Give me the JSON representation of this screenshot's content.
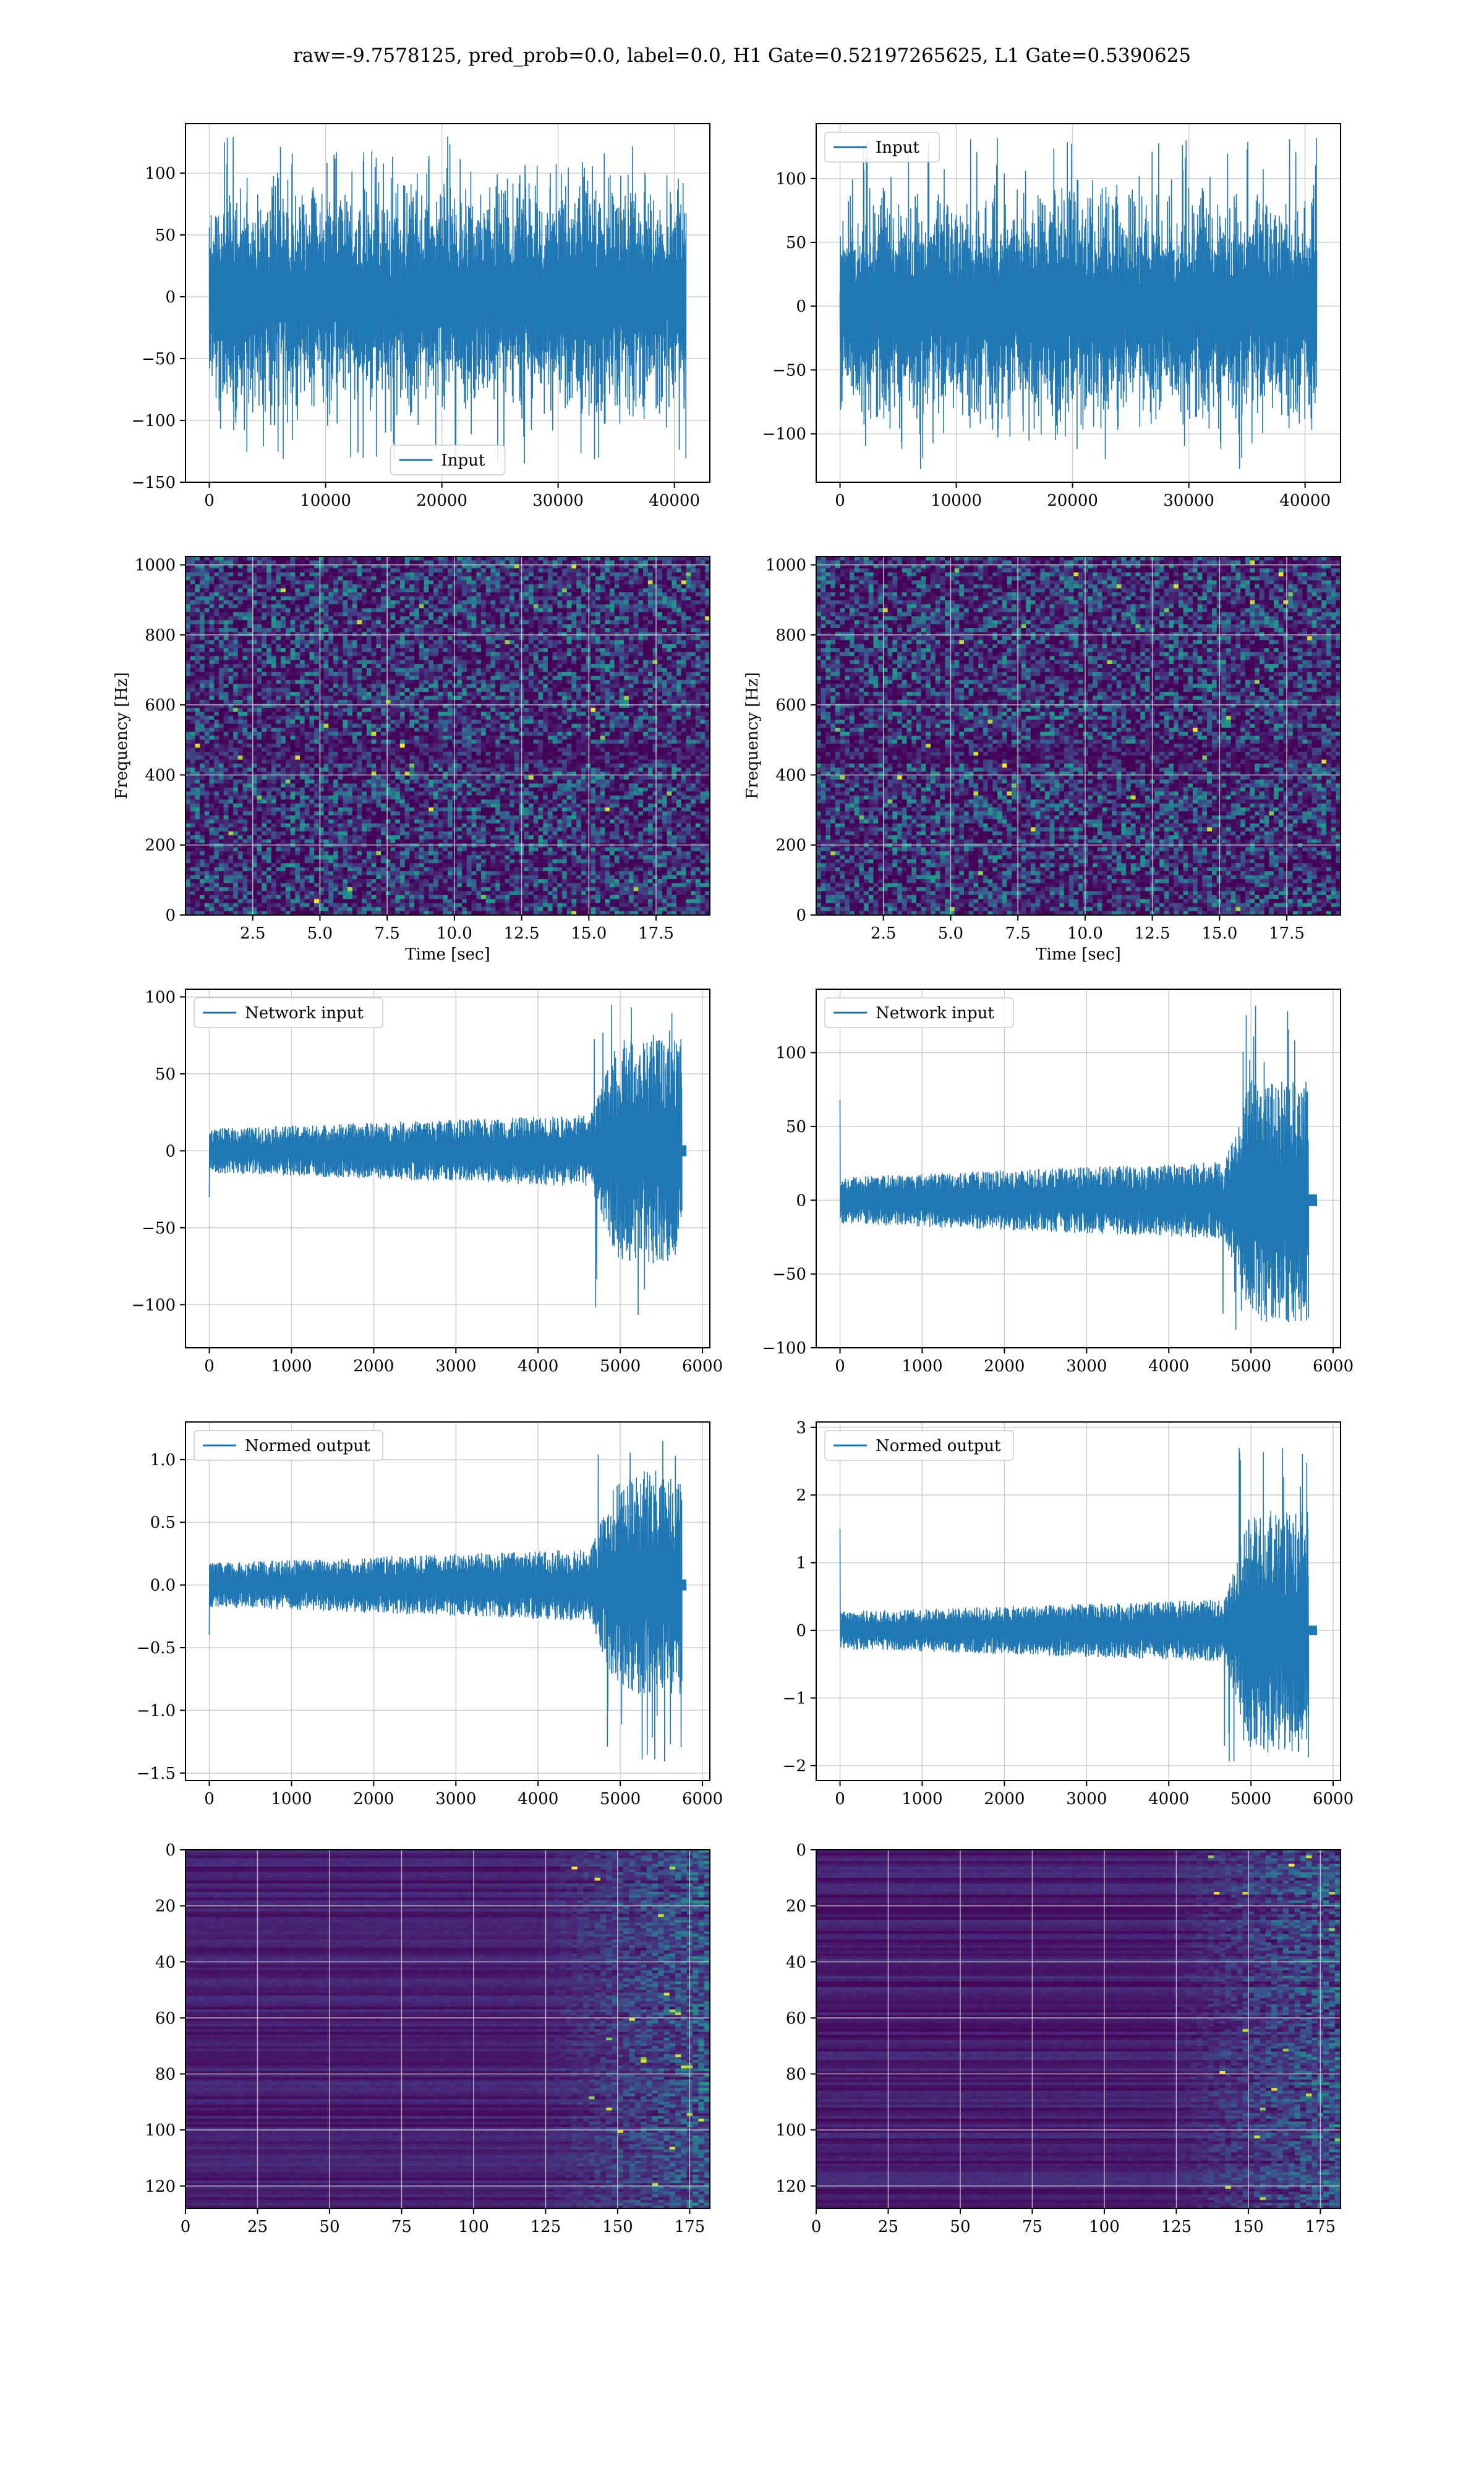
{
  "title": "raw=-9.7578125, pred_prob=0.0, label=0.0, H1 Gate=0.52197265625, L1 Gate=0.5390625",
  "colors": {
    "line": "#1f77b4",
    "grid": "#b0b0b0",
    "viridis_low": "#440154",
    "viridis_high": "#fde725"
  },
  "chart_data": [
    {
      "id": "input-h1",
      "type": "line",
      "row": 0,
      "col": 0,
      "legend": "Input",
      "legend_loc": "lower center",
      "x": [
        0,
        41000
      ],
      "xlim": [
        -2050,
        43050
      ],
      "ylim": [
        -150,
        140
      ],
      "xticks": [
        0,
        10000,
        20000,
        30000,
        40000
      ],
      "xticklabels": [
        "0",
        "10000",
        "20000",
        "30000",
        "40000"
      ],
      "yticks": [
        -150,
        -100,
        -50,
        0,
        50,
        100
      ],
      "yticklabels": [
        "−150",
        "−100",
        "−50",
        "0",
        "50",
        "100"
      ],
      "envelope": {
        "typical_abs": 85,
        "spike_max": 130,
        "spike_min": -135
      },
      "xlabel": "",
      "ylabel": ""
    },
    {
      "id": "input-l1",
      "type": "line",
      "row": 0,
      "col": 1,
      "legend": "Input",
      "legend_loc": "upper left",
      "x": [
        0,
        41000
      ],
      "xlim": [
        -2050,
        43050
      ],
      "ylim": [
        -138,
        143
      ],
      "xticks": [
        0,
        10000,
        20000,
        30000,
        40000
      ],
      "xticklabels": [
        "0",
        "10000",
        "20000",
        "30000",
        "40000"
      ],
      "yticks": [
        -100,
        -50,
        0,
        50,
        100
      ],
      "yticklabels": [
        "−100",
        "−50",
        "0",
        "50",
        "100"
      ],
      "envelope": {
        "typical_abs": 82,
        "spike_max": 132,
        "spike_min": -128
      },
      "xlabel": "",
      "ylabel": ""
    },
    {
      "id": "spec-h1",
      "type": "heatmap",
      "row": 1,
      "col": 0,
      "xlim": [
        0,
        19.5
      ],
      "ylim": [
        0,
        1024
      ],
      "xticks": [
        2.5,
        5.0,
        7.5,
        10.0,
        12.5,
        15.0,
        17.5
      ],
      "xticklabels": [
        "2.5",
        "5.0",
        "7.5",
        "10.0",
        "12.5",
        "15.0",
        "17.5"
      ],
      "yticks": [
        0,
        200,
        400,
        600,
        800,
        1000
      ],
      "yticklabels": [
        "0",
        "200",
        "400",
        "600",
        "800",
        "1000"
      ],
      "xlabel": "Time [sec]",
      "ylabel": "Frequency [Hz]",
      "colormap": "viridis"
    },
    {
      "id": "spec-l1",
      "type": "heatmap",
      "row": 1,
      "col": 1,
      "xlim": [
        0,
        19.5
      ],
      "ylim": [
        0,
        1024
      ],
      "xticks": [
        2.5,
        5.0,
        7.5,
        10.0,
        12.5,
        15.0,
        17.5
      ],
      "xticklabels": [
        "2.5",
        "5.0",
        "7.5",
        "10.0",
        "12.5",
        "15.0",
        "17.5"
      ],
      "yticks": [
        0,
        200,
        400,
        600,
        800,
        1000
      ],
      "yticklabels": [
        "0",
        "200",
        "400",
        "600",
        "800",
        "1000"
      ],
      "xlabel": "Time [sec]",
      "ylabel": "Frequency [Hz]",
      "colormap": "viridis"
    },
    {
      "id": "netin-h1",
      "type": "line",
      "row": 2,
      "col": 0,
      "legend": "Network input",
      "legend_loc": "upper left",
      "x": [
        0,
        5800
      ],
      "xlim": [
        -290,
        6090
      ],
      "ylim": [
        -128,
        105
      ],
      "xticks": [
        0,
        1000,
        2000,
        3000,
        4000,
        5000,
        6000
      ],
      "xticklabels": [
        "0",
        "1000",
        "2000",
        "3000",
        "4000",
        "5000",
        "6000"
      ],
      "yticks": [
        -100,
        -50,
        0,
        50,
        100
      ],
      "yticklabels": [
        "−100",
        "−50",
        "0",
        "50",
        "100"
      ],
      "envelope": {
        "start_spike": -30,
        "base_abs": 18,
        "burst_start": 4600,
        "burst_end": 5750,
        "burst_max": 95,
        "burst_min": -118,
        "tail_x": 5800
      },
      "xlabel": "",
      "ylabel": ""
    },
    {
      "id": "netin-l1",
      "type": "line",
      "row": 2,
      "col": 1,
      "legend": "Network input",
      "legend_loc": "upper left",
      "x": [
        0,
        5800
      ],
      "xlim": [
        -290,
        6090
      ],
      "ylim": [
        -100,
        143
      ],
      "xticks": [
        0,
        1000,
        2000,
        3000,
        4000,
        5000,
        6000
      ],
      "xticklabels": [
        "0",
        "1000",
        "2000",
        "3000",
        "4000",
        "5000",
        "6000"
      ],
      "yticks": [
        -100,
        -50,
        0,
        50,
        100
      ],
      "yticklabels": [
        "−100",
        "−50",
        "0",
        "50",
        "100"
      ],
      "envelope": {
        "start_spike": 68,
        "base_abs": 20,
        "burst_start": 4650,
        "burst_end": 5700,
        "burst_max": 132,
        "burst_min": -88,
        "tail_x": 5800
      },
      "xlabel": "",
      "ylabel": ""
    },
    {
      "id": "normout-h1",
      "type": "line",
      "row": 3,
      "col": 0,
      "legend": "Normed output",
      "legend_loc": "upper left",
      "x": [
        0,
        5800
      ],
      "xlim": [
        -290,
        6090
      ],
      "ylim": [
        -1.56,
        1.3
      ],
      "xticks": [
        0,
        1000,
        2000,
        3000,
        4000,
        5000,
        6000
      ],
      "xticklabels": [
        "0",
        "1000",
        "2000",
        "3000",
        "4000",
        "5000",
        "6000"
      ],
      "yticks": [
        -1.5,
        -1.0,
        -0.5,
        0.0,
        0.5,
        1.0
      ],
      "yticklabels": [
        "−1.5",
        "−1.0",
        "−0.5",
        "0.0",
        "0.5",
        "1.0"
      ],
      "envelope": {
        "start_spike": -0.4,
        "base_abs": 0.22,
        "burst_start": 4600,
        "burst_end": 5750,
        "burst_max": 1.18,
        "burst_min": -1.42,
        "tail_x": 5800
      },
      "xlabel": "",
      "ylabel": ""
    },
    {
      "id": "normout-l1",
      "type": "line",
      "row": 3,
      "col": 1,
      "legend": "Normed output",
      "legend_loc": "upper left",
      "x": [
        0,
        5800
      ],
      "xlim": [
        -290,
        6090
      ],
      "ylim": [
        -2.22,
        3.08
      ],
      "xticks": [
        0,
        1000,
        2000,
        3000,
        4000,
        5000,
        6000
      ],
      "xticklabels": [
        "0",
        "1000",
        "2000",
        "3000",
        "4000",
        "5000",
        "6000"
      ],
      "yticks": [
        -2,
        -1,
        0,
        1,
        2,
        3
      ],
      "yticklabels": [
        "−2",
        "−1",
        "0",
        "1",
        "2",
        "3"
      ],
      "envelope": {
        "start_spike": 1.5,
        "base_abs": 0.35,
        "burst_start": 4650,
        "burst_end": 5700,
        "burst_max": 2.85,
        "burst_min": -1.95,
        "tail_x": 5800
      },
      "xlabel": "",
      "ylabel": ""
    },
    {
      "id": "features-h1",
      "type": "heatmap",
      "row": 4,
      "col": 0,
      "xlim": [
        0,
        182
      ],
      "ylim": [
        128,
        0
      ],
      "xticks": [
        0,
        25,
        50,
        75,
        100,
        125,
        150,
        175
      ],
      "xticklabels": [
        "0",
        "25",
        "50",
        "75",
        "100",
        "125",
        "150",
        "175"
      ],
      "yticks": [
        0,
        20,
        40,
        60,
        80,
        100,
        120
      ],
      "yticklabels": [
        "0",
        "20",
        "40",
        "60",
        "80",
        "100",
        "120"
      ],
      "activity_onset": 120,
      "colormap": "viridis",
      "xlabel": "",
      "ylabel": ""
    },
    {
      "id": "features-l1",
      "type": "heatmap",
      "row": 4,
      "col": 1,
      "xlim": [
        0,
        182
      ],
      "ylim": [
        128,
        0
      ],
      "xticks": [
        0,
        25,
        50,
        75,
        100,
        125,
        150,
        175
      ],
      "xticklabels": [
        "0",
        "25",
        "50",
        "75",
        "100",
        "125",
        "150",
        "175"
      ],
      "yticks": [
        0,
        20,
        40,
        60,
        80,
        100,
        120
      ],
      "yticklabels": [
        "0",
        "20",
        "40",
        "60",
        "80",
        "100",
        "120"
      ],
      "activity_onset": 120,
      "colormap": "viridis",
      "xlabel": "",
      "ylabel": ""
    }
  ]
}
